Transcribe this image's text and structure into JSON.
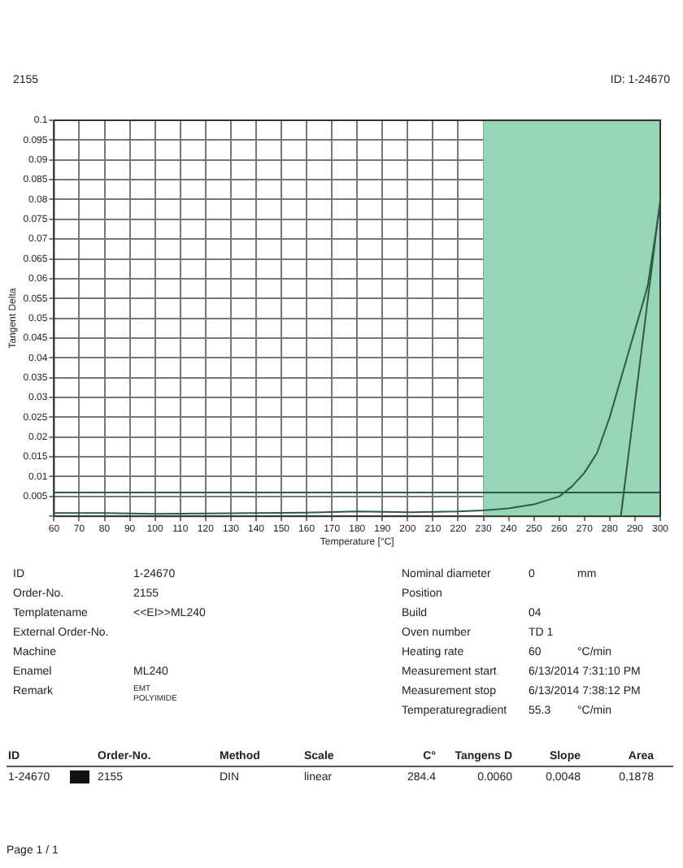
{
  "chart_data": {
    "type": "line",
    "xlabel": "Temperature [°C]",
    "ylabel": "Tangent Delta",
    "series": [
      {
        "color": "#2f5b45",
        "x": [
          60,
          80,
          100,
          120,
          140,
          160,
          180,
          200,
          220,
          230,
          240,
          250,
          260,
          265,
          270,
          275,
          280,
          285,
          290,
          295,
          300
        ],
        "values": [
          0.0008,
          0.0008,
          0.0006,
          0.0007,
          0.0008,
          0.0009,
          0.0012,
          0.001,
          0.0012,
          0.0015,
          0.002,
          0.003,
          0.005,
          0.0075,
          0.011,
          0.016,
          0.025,
          0.036,
          0.047,
          0.058,
          0.079
        ]
      },
      {
        "color": "#2f5b45",
        "x": [
          284.4,
          300
        ],
        "values": [
          0,
          0.08
        ]
      }
    ],
    "xlim": [
      60,
      300
    ],
    "xticks": [
      60,
      70,
      80,
      90,
      100,
      110,
      120,
      130,
      140,
      150,
      160,
      170,
      180,
      190,
      200,
      210,
      220,
      230,
      240,
      250,
      260,
      270,
      280,
      290,
      300
    ],
    "ylim": [
      0,
      0.1
    ],
    "yticks": [
      {
        "value": 0,
        "label": null
      },
      0.005,
      0.01,
      0.015,
      0.02,
      0.025,
      0.03,
      0.035,
      0.04,
      0.045,
      0.05,
      0.055,
      0.06,
      0.065,
      0.07,
      0.075,
      0.08,
      0.085,
      0.09,
      0.095,
      0.1
    ],
    "grid": true,
    "marker": "none",
    "ref_lines": [
      {
        "axis": "y",
        "value": 0.006,
        "color": "#2f5b45"
      }
    ],
    "bands": [
      {
        "axis": "x",
        "from": 230,
        "to": 300,
        "color": "#96d5b5"
      }
    ],
    "annotations": [
      "2155",
      "ID: 1-24670",
      "ID",
      "Order-No.",
      "Templatename",
      "External Order-No.",
      "Machine",
      "Enamel",
      "Remark",
      "1-24670",
      "2155",
      "<<EI>>ML240",
      "ML240",
      "EMT\nPOLYIMIDE",
      "Nominal diameter",
      "Position",
      "Build",
      "Oven number",
      "Heating rate",
      "Measurement start",
      "Measurement stop",
      "Temperaturegradient",
      "0",
      "04",
      "TD 1",
      "60",
      "6/13/2014 7:31:10 PM",
      "6/13/2014 7:38:12 PM",
      "55.3",
      "mm",
      "°C/min",
      "°C/min",
      "ID",
      "Order-No.",
      "Method",
      "Scale",
      "C°",
      "Tangens D",
      "Slope",
      "Area",
      "1-24670",
      "2155",
      "DIN",
      "linear",
      "284.4",
      "0.0060",
      "0,0048",
      "0,1878",
      "Page 1 / 1"
    ]
  }
}
